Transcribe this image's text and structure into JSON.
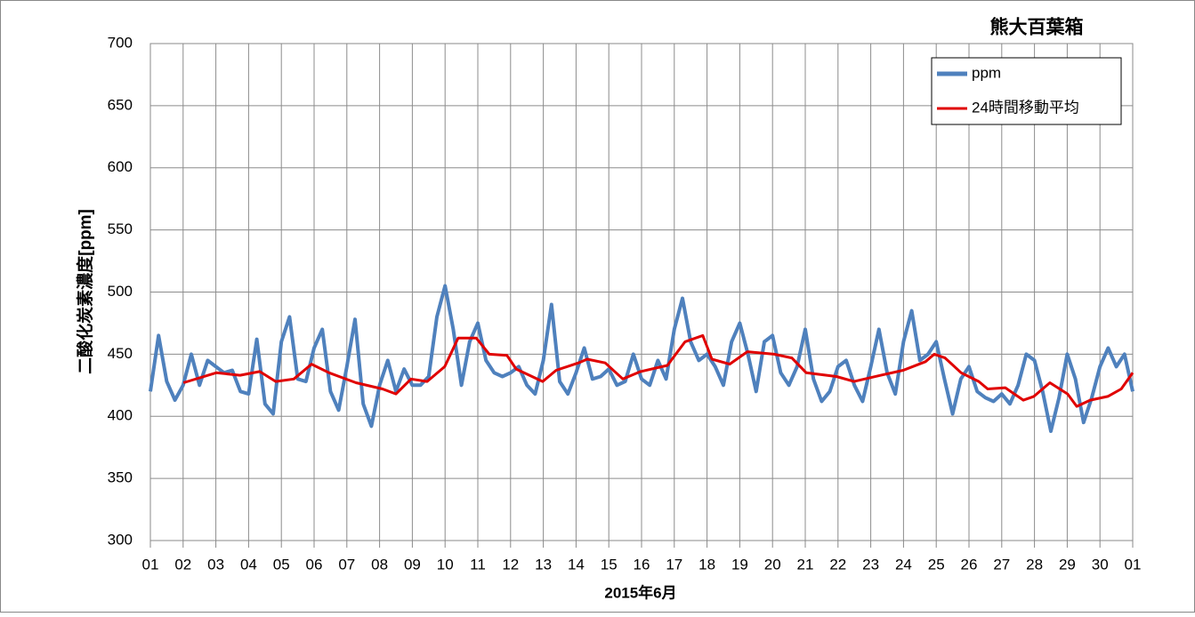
{
  "chart_data": {
    "type": "line",
    "title": "熊大百葉箱",
    "x_label": "2015年6月",
    "y_label": "二酸化炭素濃度[ppm]",
    "xlim": [
      0,
      30
    ],
    "ylim": [
      300,
      700
    ],
    "yticks": [
      300,
      350,
      400,
      450,
      500,
      550,
      600,
      650,
      700
    ],
    "xticks": [
      {
        "value": 0,
        "label": "01"
      },
      {
        "value": 1,
        "label": "02"
      },
      {
        "value": 2,
        "label": "03"
      },
      {
        "value": 3,
        "label": "04"
      },
      {
        "value": 4,
        "label": "05"
      },
      {
        "value": 5,
        "label": "06"
      },
      {
        "value": 6,
        "label": "07"
      },
      {
        "value": 7,
        "label": "08"
      },
      {
        "value": 8,
        "label": "09"
      },
      {
        "value": 9,
        "label": "10"
      },
      {
        "value": 10,
        "label": "11"
      },
      {
        "value": 11,
        "label": "12"
      },
      {
        "value": 12,
        "label": "13"
      },
      {
        "value": 13,
        "label": "14"
      },
      {
        "value": 14,
        "label": "15"
      },
      {
        "value": 15,
        "label": "16"
      },
      {
        "value": 16,
        "label": "17"
      },
      {
        "value": 17,
        "label": "18"
      },
      {
        "value": 18,
        "label": "19"
      },
      {
        "value": 19,
        "label": "20"
      },
      {
        "value": 20,
        "label": "21"
      },
      {
        "value": 21,
        "label": "22"
      },
      {
        "value": 22,
        "label": "23"
      },
      {
        "value": 23,
        "label": "24"
      },
      {
        "value": 24,
        "label": "25"
      },
      {
        "value": 25,
        "label": "26"
      },
      {
        "value": 26,
        "label": "27"
      },
      {
        "value": 27,
        "label": "28"
      },
      {
        "value": 28,
        "label": "29"
      },
      {
        "value": 29,
        "label": "30"
      },
      {
        "value": 30,
        "label": "01"
      }
    ],
    "grid": true,
    "legend": "upper right",
    "series": [
      {
        "name": "ppm",
        "color": "#4f81bd",
        "x": [
          0,
          0.25,
          0.5,
          0.75,
          1,
          1.25,
          1.5,
          1.75,
          2,
          2.25,
          2.5,
          2.75,
          3,
          3.25,
          3.5,
          3.75,
          4,
          4.25,
          4.5,
          4.75,
          5,
          5.25,
          5.5,
          5.75,
          6,
          6.25,
          6.5,
          6.75,
          7,
          7.25,
          7.5,
          7.75,
          8,
          8.25,
          8.5,
          8.75,
          9,
          9.25,
          9.5,
          9.75,
          10,
          10.25,
          10.5,
          10.75,
          11,
          11.25,
          11.5,
          11.75,
          12,
          12.25,
          12.5,
          12.75,
          13,
          13.25,
          13.5,
          13.75,
          14,
          14.25,
          14.5,
          14.75,
          15,
          15.25,
          15.5,
          15.75,
          16,
          16.25,
          16.5,
          16.75,
          17,
          17.25,
          17.5,
          17.75,
          18,
          18.25,
          18.5,
          18.75,
          19,
          19.25,
          19.5,
          19.75,
          20,
          20.25,
          20.5,
          20.75,
          21,
          21.25,
          21.5,
          21.75,
          22,
          22.25,
          22.5,
          22.75,
          23,
          23.25,
          23.5,
          23.75,
          24,
          24.25,
          24.5,
          24.75,
          25,
          25.25,
          25.5,
          25.75,
          26,
          26.25,
          26.5,
          26.75,
          27,
          27.25,
          27.5,
          27.75,
          28,
          28.25,
          28.5,
          28.75,
          29,
          29.25,
          29.5,
          29.75,
          30
        ],
        "values": [
          420,
          465,
          428,
          413,
          425,
          450,
          425,
          445,
          440,
          435,
          437,
          420,
          418,
          462,
          410,
          402,
          460,
          480,
          430,
          428,
          455,
          470,
          420,
          405,
          440,
          478,
          410,
          392,
          425,
          445,
          420,
          438,
          425,
          425,
          432,
          480,
          505,
          470,
          425,
          460,
          475,
          445,
          435,
          432,
          435,
          440,
          425,
          418,
          445,
          490,
          428,
          418,
          435,
          455,
          430,
          432,
          438,
          425,
          428,
          450,
          430,
          425,
          445,
          430,
          470,
          495,
          460,
          445,
          450,
          440,
          425,
          460,
          475,
          450,
          420,
          460,
          465,
          435,
          425,
          440,
          470,
          430,
          412,
          420,
          440,
          445,
          425,
          412,
          440,
          470,
          435,
          418,
          460,
          485,
          445,
          450,
          460,
          430,
          402,
          430,
          440,
          420,
          415,
          412,
          418,
          410,
          425,
          450,
          445,
          420,
          388,
          415,
          450,
          430,
          395,
          415,
          440,
          455,
          440,
          450,
          420
        ]
      },
      {
        "name": "24時間移動平均",
        "color": "#e00000",
        "x": [
          1.01,
          2.01,
          2.74,
          3.34,
          3.83,
          4.38,
          4.92,
          5.46,
          6.28,
          7.09,
          7.5,
          7.96,
          8.45,
          8.99,
          9.4,
          9.95,
          10.35,
          10.89,
          11.17,
          11.98,
          12.39,
          13.07,
          13.34,
          13.89,
          14.43,
          14.97,
          15.79,
          16.33,
          16.87,
          17.15,
          17.69,
          18.23,
          19.05,
          19.59,
          20.03,
          20.95,
          21.49,
          22.31,
          22.99,
          23.67,
          23.94,
          24.27,
          24.76,
          25.3,
          25.57,
          26.11,
          26.66,
          26.98,
          27.47,
          28.01,
          28.29,
          28.7,
          29.24,
          29.65,
          30
        ],
        "values": [
          427,
          435,
          433,
          436,
          428,
          430,
          442,
          435,
          427,
          422,
          418,
          430,
          428,
          440,
          463,
          463,
          450,
          449,
          438,
          428,
          437,
          443,
          446,
          443,
          430,
          436,
          441,
          460,
          465,
          446,
          442,
          452,
          450,
          447,
          435,
          432,
          428,
          433,
          437,
          444,
          450,
          447,
          435,
          428,
          422,
          423,
          413,
          416,
          427,
          418,
          408,
          413,
          416,
          422,
          435
        ]
      }
    ]
  }
}
